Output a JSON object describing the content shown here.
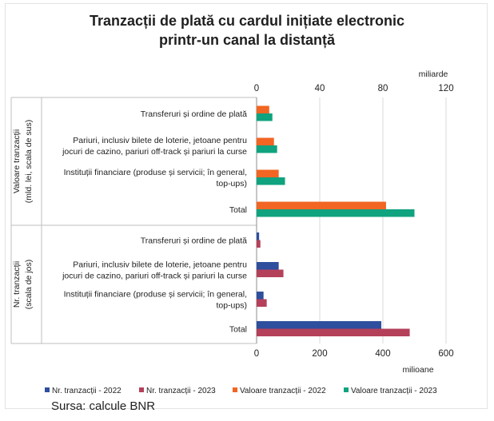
{
  "title_line1": "Tranzacții de plată cu cardul inițiate electronic",
  "title_line2": "printr-un canal la distanță",
  "source": "Sursa: calcule BNR",
  "colors": {
    "nr2022": "#2E4F9E",
    "nr2023": "#B5405A",
    "val2022": "#F26522",
    "val2023": "#0FA37F"
  },
  "chart_data": {
    "type": "bar",
    "orientation": "horizontal",
    "grid": true,
    "legend_position": "bottom",
    "panels": [
      {
        "group_label_line1": "Valoare tranzacții",
        "group_label_line2": "(mld. lei, scala de sus)",
        "axis": "top",
        "axis_unit": "miliarde",
        "xlim": [
          0,
          120
        ],
        "ticks": [
          "0",
          "40",
          "80",
          "120"
        ],
        "categories": [
          [
            "Transferuri și ordine de plată"
          ],
          [
            "Pariuri, inclusiv bilete de loterie, jetoane pentru",
            "jocuri de cazino, pariuri off-track și pariuri la curse"
          ],
          [
            "Instituții financiare (produse și servicii; în general,",
            "top-ups)"
          ],
          [
            "Total"
          ]
        ],
        "series": [
          {
            "name": "Valoare tranzacții - 2022",
            "color_key": "val2022",
            "values": [
              8,
              11,
              14,
              82
            ]
          },
          {
            "name": "Valoare tranzacții - 2023",
            "color_key": "val2023",
            "values": [
              10,
              13,
              18,
              100
            ]
          }
        ]
      },
      {
        "group_label_line1": "Nr. tranzacții",
        "group_label_line2": "(scala de jos)",
        "axis": "bottom",
        "axis_unit": "milioane",
        "xlim": [
          0,
          600
        ],
        "ticks": [
          "0",
          "200",
          "400",
          "600"
        ],
        "categories": [
          [
            "Transferuri și ordine de plată"
          ],
          [
            "Pariuri, inclusiv bilete de loterie, jetoane pentru",
            "jocuri de cazino, pariuri off-track și pariuri la curse"
          ],
          [
            "Instituții financiare (produse și servicii; în general,",
            "top-ups)"
          ],
          [
            "Total"
          ]
        ],
        "series": [
          {
            "name": "Nr. tranzacții - 2022",
            "color_key": "nr2022",
            "values": [
              8,
              70,
              22,
              395
            ]
          },
          {
            "name": "Nr. tranzacții - 2023",
            "color_key": "nr2023",
            "values": [
              12,
              85,
              32,
              485
            ]
          }
        ]
      }
    ],
    "legend": [
      {
        "name": "Nr. tranzacții - 2022",
        "color_key": "nr2022"
      },
      {
        "name": "Nr. tranzacții - 2023",
        "color_key": "nr2023"
      },
      {
        "name": "Valoare tranzacții - 2022",
        "color_key": "val2022"
      },
      {
        "name": "Valoare tranzacții - 2023",
        "color_key": "val2023"
      }
    ]
  }
}
